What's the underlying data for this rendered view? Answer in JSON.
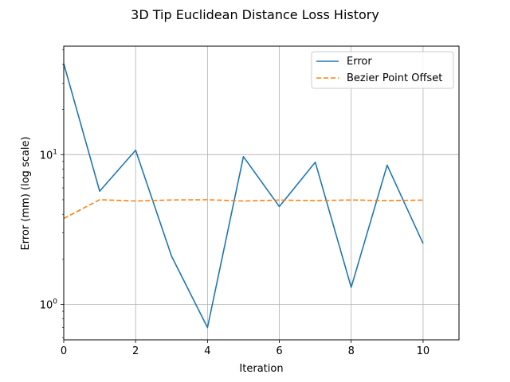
{
  "chart_data": {
    "type": "line",
    "title": "3D Tip Euclidean Distance Loss History",
    "xlabel": "Iteration",
    "ylabel": "Error (mm) (log scale)",
    "xlim": [
      0,
      11
    ],
    "ylim": [
      0.58,
      53
    ],
    "yscale": "log",
    "grid": true,
    "legend_position": "top-right",
    "x_ticks": [
      0,
      2,
      4,
      6,
      8,
      10
    ],
    "x_tick_labels": [
      "0",
      "2",
      "4",
      "6",
      "8",
      "10"
    ],
    "y_ticks": [
      1,
      10
    ],
    "y_tick_labels": [
      "10^0",
      "10^1"
    ],
    "y_tick_display": [
      {
        "base": "10",
        "exp": "0"
      },
      {
        "base": "10",
        "exp": "1"
      }
    ],
    "x": [
      0,
      1,
      2,
      3,
      4,
      5,
      6,
      7,
      8,
      9,
      10
    ],
    "series": [
      {
        "name": "Error",
        "color": "#1f77b4",
        "style": "solid",
        "values": [
          40.5,
          5.7,
          10.7,
          2.1,
          0.7,
          9.7,
          4.5,
          8.9,
          1.3,
          8.5,
          2.55
        ]
      },
      {
        "name": "Bezier Point Offset",
        "color": "#ff7f0e",
        "style": "dashed",
        "values": [
          3.75,
          5.0,
          4.9,
          4.98,
          5.0,
          4.9,
          4.97,
          4.93,
          4.98,
          4.93,
          4.97
        ]
      }
    ]
  }
}
